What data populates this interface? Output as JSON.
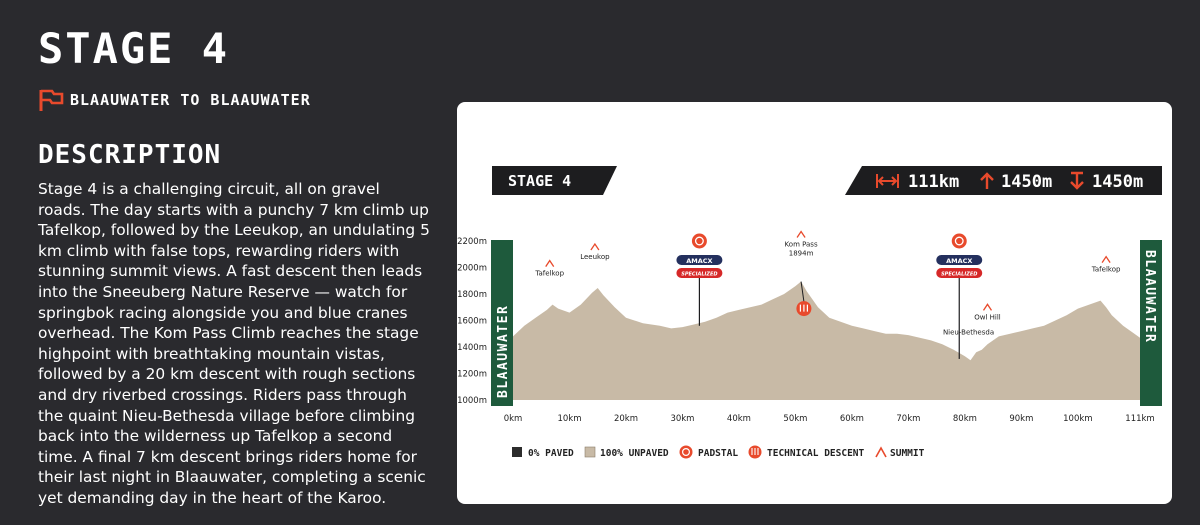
{
  "stage": {
    "title": "STAGE 4"
  },
  "route": {
    "label": "BLAAUWATER TO BLAAUWATER"
  },
  "description": {
    "heading": "DESCRIPTION",
    "body": "Stage 4 is a challenging circuit, all on gravel roads. The day starts with a punchy 7 km climb up Tafelkop, followed by the Leeukop, an undulating 5 km climb with false tops, rewarding riders with stunning summit views. A fast descent then leads into the Sneeuberg Nature Reserve — watch for springbok racing alongside you and blue cranes overhead. The Kom Pass Climb reaches the stage highpoint with breathtaking mountain vistas, followed by a 20 km descent with rough sections and dry riverbed crossings. Riders pass through the quaint Nieu-Bethesda village before climbing back into the wilderness up Tafelkop a second time. A final 7 km descent brings riders home for their last night in Blaauwater, completing a scenic yet demanding day in the heart of the Karoo."
  },
  "profile": {
    "stage_label": "STAGE 4",
    "stats": {
      "distance": "111km",
      "climb": "1450m",
      "descent": "1450m"
    },
    "start_label": "BLAAUWATER",
    "finish_label": "BLAAUWATER",
    "colors": {
      "terrain": "#c8baa6",
      "accent": "#e84a2c",
      "dark": "#1d1d1f",
      "green": "#1e5a3c",
      "navy": "#24305e",
      "red": "#d62828"
    },
    "legend": [
      {
        "label": "0% PAVED",
        "icon": "dark-square-icon"
      },
      {
        "label": "100% UNPAVED",
        "icon": "tan-square-icon"
      },
      {
        "label": "PADSTAL",
        "icon": "padstal-icon"
      },
      {
        "label": "TECHNICAL DESCENT",
        "icon": "technical-descent-icon"
      },
      {
        "label": "SUMMIT",
        "icon": "summit-icon"
      }
    ],
    "poi": {
      "tafelkop_1": "Tafelkop",
      "leeukop": "Leeukop",
      "kom_pass": "Kom Pass",
      "kom_pass_alt": "1894m",
      "nieu_bethesda": "Nieu-Bethesda",
      "owl_hill": "Owl Hill",
      "tafelkop_2": "Tafelkop",
      "sponsor_1": "AMACX",
      "sponsor_2": "SPECIALIZED"
    }
  },
  "chart_data": {
    "type": "area",
    "title": "STAGE 4",
    "xlabel": "",
    "ylabel": "",
    "x_unit": "km",
    "y_unit": "m",
    "xlim": [
      0,
      111
    ],
    "ylim": [
      1000,
      2200
    ],
    "x_ticks": [
      "0km",
      "10km",
      "20km",
      "30km",
      "40km",
      "50km",
      "60km",
      "70km",
      "80km",
      "90km",
      "100km",
      "111km"
    ],
    "y_ticks": [
      "2200m",
      "2000m",
      "1800m",
      "1600m",
      "1400m",
      "1200m",
      "1000m"
    ],
    "grid": false,
    "legend_position": "bottom",
    "series": [
      {
        "x": [
          0,
          2,
          4,
          6,
          7,
          8,
          10,
          12,
          14,
          15,
          16,
          18,
          20,
          23,
          26,
          28,
          30,
          32,
          34,
          36,
          38,
          40,
          42,
          44,
          46,
          48,
          50,
          51,
          52,
          54,
          56,
          58,
          60,
          62,
          64,
          66,
          68,
          70,
          72,
          74,
          76,
          78,
          80,
          81,
          82,
          83,
          84,
          86,
          88,
          90,
          92,
          94,
          96,
          98,
          100,
          102,
          104,
          105,
          106,
          108,
          110,
          111
        ],
        "y": [
          1480,
          1560,
          1620,
          1680,
          1720,
          1690,
          1660,
          1720,
          1810,
          1845,
          1790,
          1700,
          1620,
          1580,
          1560,
          1540,
          1550,
          1570,
          1590,
          1620,
          1660,
          1680,
          1700,
          1720,
          1760,
          1800,
          1860,
          1894,
          1820,
          1700,
          1620,
          1590,
          1560,
          1540,
          1520,
          1500,
          1500,
          1490,
          1470,
          1450,
          1420,
          1380,
          1330,
          1300,
          1360,
          1380,
          1420,
          1480,
          1500,
          1520,
          1540,
          1560,
          1600,
          1640,
          1690,
          1720,
          1750,
          1700,
          1640,
          1560,
          1500,
          1470
        ]
      }
    ],
    "annotations": [
      {
        "x": 6.5,
        "y": 1720,
        "type": "summit",
        "label": "Tafelkop"
      },
      {
        "x": 14.5,
        "y": 1845,
        "type": "summit",
        "label": "Leeukop"
      },
      {
        "x": 33,
        "y": 1560,
        "type": "padstal"
      },
      {
        "x": 51,
        "y": 1894,
        "type": "summit",
        "label": "Kom Pass 1894m"
      },
      {
        "x": 51.5,
        "y": 1700,
        "type": "technical_descent"
      },
      {
        "x": 79,
        "y": 1310,
        "type": "padstal"
      },
      {
        "x": 81,
        "y": 1300,
        "type": "town",
        "label": "Nieu-Bethesda"
      },
      {
        "x": 84,
        "y": 1420,
        "type": "summit",
        "label": "Owl Hill"
      },
      {
        "x": 105,
        "y": 1750,
        "type": "summit",
        "label": "Tafelkop"
      }
    ]
  }
}
